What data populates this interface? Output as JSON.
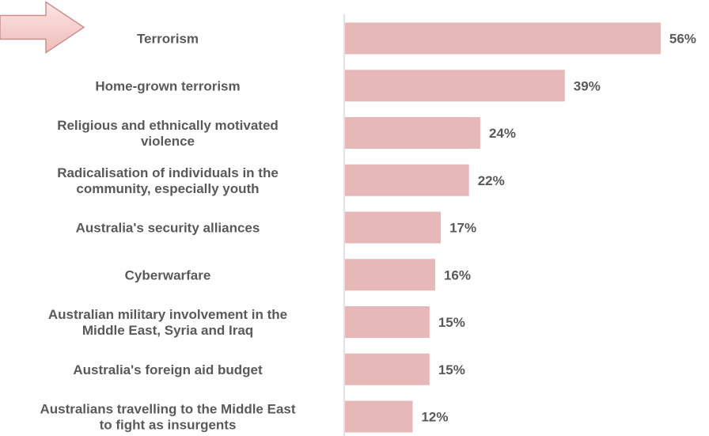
{
  "chart_data": {
    "type": "bar",
    "orientation": "horizontal",
    "categories": [
      "Terrorism",
      "Home-grown terrorism",
      "Religious and ethnically motivated violence",
      "Radicalisation of individuals in the community, especially youth",
      "Australia's security alliances",
      "Cyberwarfare",
      "Australian military involvement in the Middle East, Syria and Iraq",
      "Australia's foreign aid budget",
      "Australians travelling to the Middle East to fight as insurgents"
    ],
    "category_lines": [
      [
        "Terrorism"
      ],
      [
        "Home-grown terrorism"
      ],
      [
        "Religious and ethnically motivated",
        "violence"
      ],
      [
        "Radicalisation of individuals in the",
        "community, especially youth"
      ],
      [
        "Australia's security alliances"
      ],
      [
        "Cyberwarfare"
      ],
      [
        "Australian military involvement in the",
        "Middle East, Syria and Iraq"
      ],
      [
        "Australia's foreign aid budget"
      ],
      [
        "Australians travelling to the Middle East",
        "to fight as insurgents"
      ]
    ],
    "values": [
      56,
      39,
      24,
      22,
      17,
      16,
      15,
      15,
      12
    ],
    "value_labels": [
      "56%",
      "39%",
      "24%",
      "22%",
      "17%",
      "16%",
      "15%",
      "15%",
      "12%"
    ],
    "xlim": [
      0,
      57
    ],
    "grid": false,
    "legend": "none",
    "bar_color": "#e6b8b7",
    "axis_color": "#d9d9d9",
    "text_color": "#595959",
    "highlight": {
      "icon": "arrow-right-icon",
      "target_index": 0,
      "fill": "#f2c6c4",
      "stroke": "#c9908d"
    }
  }
}
